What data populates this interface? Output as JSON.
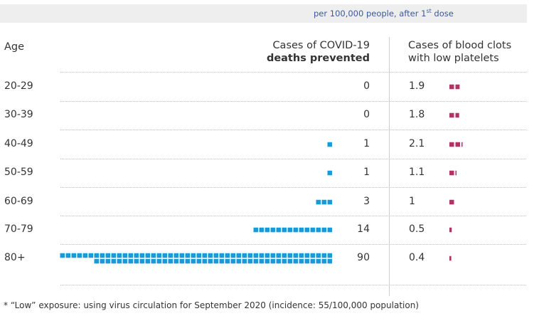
{
  "subtitle": {
    "prefix": "per 100,000 people, after 1",
    "sup": "st",
    "suffix": " dose"
  },
  "headers": {
    "age": "Age",
    "deaths_line1": "Cases of COVID-19",
    "deaths_line2": "deaths prevented",
    "clots_line1": "Cases of blood clots",
    "clots_line2": "with low platelets"
  },
  "footnote": "* “Low” exposure: using virus circulation for September 2020 (incidence: 55/100,000 population)",
  "colors": {
    "deaths": "#1a9bd7",
    "clots": "#b03366"
  },
  "chart_data": {
    "type": "table",
    "categories": [
      "20-29",
      "30-39",
      "40-49",
      "50-59",
      "60-69",
      "70-79",
      "80+"
    ],
    "series": [
      {
        "name": "Cases of COVID-19 deaths prevented",
        "values": [
          0,
          0,
          1,
          1,
          3,
          14,
          90
        ]
      },
      {
        "name": "Cases of blood clots with low platelets",
        "values": [
          1.9,
          1.8,
          2.1,
          1.1,
          1,
          0.5,
          0.4
        ]
      }
    ],
    "value_labels": {
      "deaths": [
        "0",
        "0",
        "1",
        "1",
        "3",
        "14",
        "90"
      ],
      "clots": [
        "1.9",
        "1.8",
        "2.1",
        "1.1",
        "1",
        "0.5",
        "0.4"
      ]
    }
  }
}
